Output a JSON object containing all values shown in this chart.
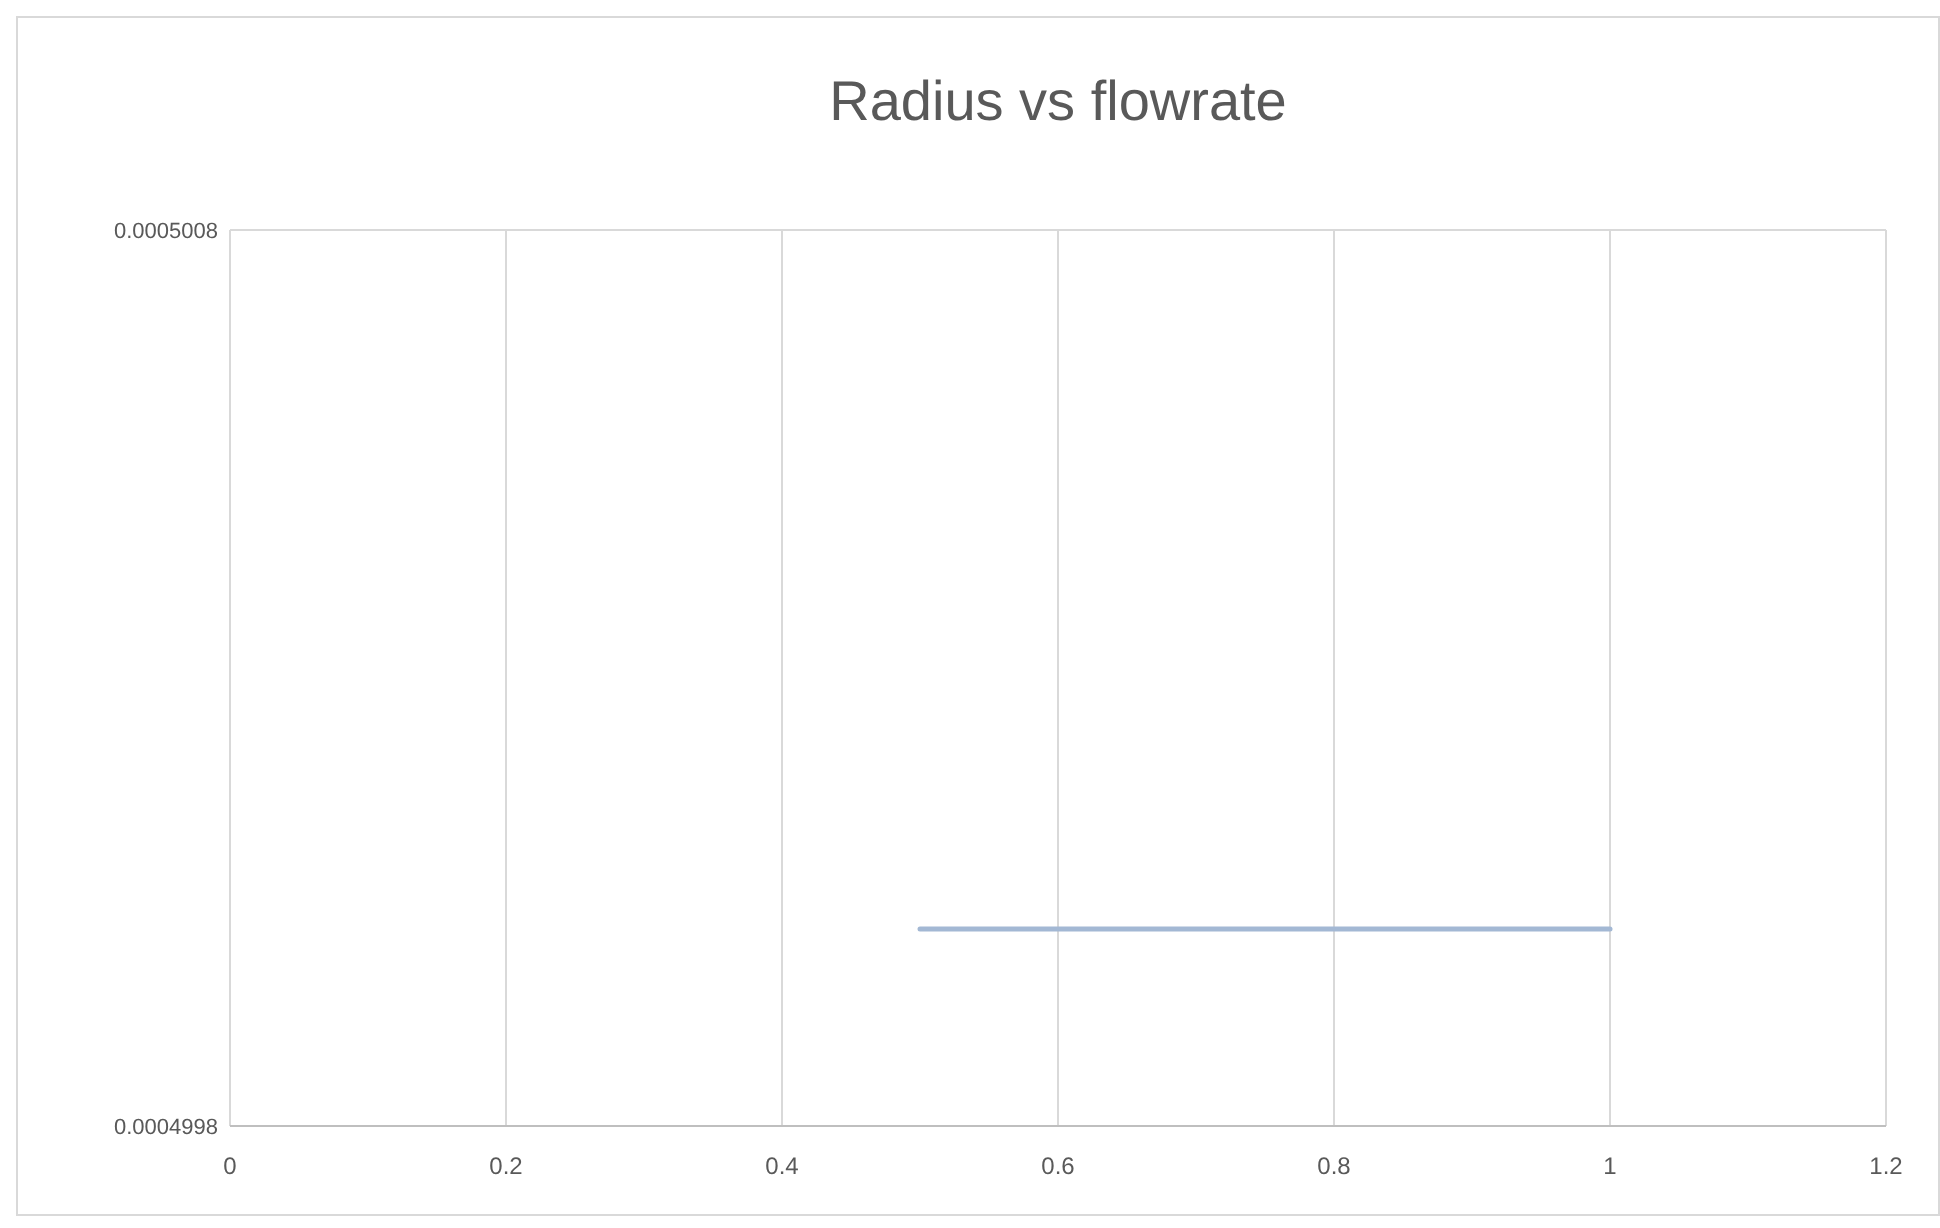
{
  "chart_data": {
    "type": "line",
    "title": "Radius vs flowrate",
    "xlim": [
      0,
      1.2
    ],
    "xticks": [
      0,
      0.2,
      0.4,
      0.6,
      0.8,
      1,
      1.2
    ],
    "ylim": [
      0.0004998,
      0.0005008
    ],
    "yticks": [
      0.0004998,
      0.0005008
    ],
    "grid": "x",
    "marker": "none",
    "series": [
      {
        "color": "#a3b8d4",
        "x": [
          0.5,
          1
        ],
        "values": [
          0.00050002,
          0.00050002
        ]
      }
    ]
  }
}
